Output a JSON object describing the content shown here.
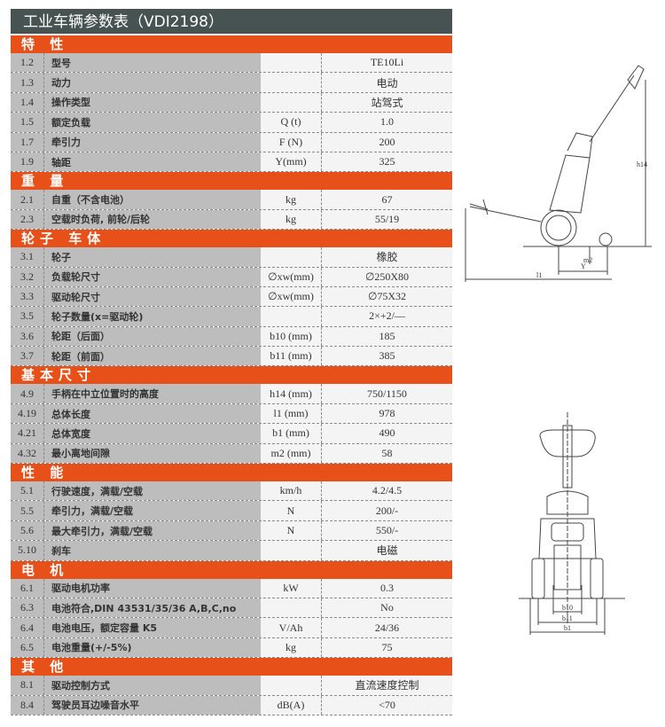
{
  "title": "工业车辆参数表（VDI2198）",
  "sections": [
    {
      "name": "特 性",
      "rows": [
        {
          "num": "1.2",
          "label": "型号",
          "unit": "",
          "value": "TE10Li"
        },
        {
          "num": "1.3",
          "label": "动力",
          "unit": "",
          "value": "电动"
        },
        {
          "num": "1.4",
          "label": "操作类型",
          "unit": "",
          "value": "站驾式"
        },
        {
          "num": "1.5",
          "label": "额定负载",
          "unit": "Q (t)",
          "value": "1.0"
        },
        {
          "num": "1.7",
          "label": "牵引力",
          "unit": "F (N)",
          "value": "200"
        },
        {
          "num": "1.9",
          "label": "轴距",
          "unit": "Y(mm)",
          "value": "325"
        }
      ]
    },
    {
      "name": "重 量",
      "rows": [
        {
          "num": "2.1",
          "label": "自重（不含电池）",
          "unit": "kg",
          "value": "67"
        },
        {
          "num": "2.3",
          "label": "空载时负荷, 前轮/后轮",
          "unit": "kg",
          "value": "55/19"
        }
      ]
    },
    {
      "name": "轮子  车体",
      "rows": [
        {
          "num": "3.1",
          "label": "轮子",
          "unit": "",
          "value": "橡胶"
        },
        {
          "num": "3.2",
          "label": "负载轮尺寸",
          "unit": "∅xw(mm)",
          "value": "∅250X80"
        },
        {
          "num": "3.3",
          "label": "驱动轮尺寸",
          "unit": "∅xw(mm)",
          "value": "∅75X32"
        },
        {
          "num": "3.5",
          "label": "轮子数量(x=驱动轮)",
          "unit": "",
          "value": "2×+2/—"
        },
        {
          "num": "3.6",
          "label": "轮距（后面）",
          "unit": "b10 (mm)",
          "value": "185"
        },
        {
          "num": "3.7",
          "label": "轮距（前面）",
          "unit": "b11 (mm)",
          "value": "385"
        }
      ]
    },
    {
      "name": "基本尺寸",
      "rows": [
        {
          "num": "4.9",
          "label": "手柄在中立位置时的高度",
          "unit": "h14 (mm)",
          "value": "750/1150"
        },
        {
          "num": "4.19",
          "label": "总体长度",
          "unit": "l1 (mm)",
          "value": "978"
        },
        {
          "num": "4.21",
          "label": "总体宽度",
          "unit": "b1 (mm)",
          "value": "490"
        },
        {
          "num": "4.32",
          "label": "最小离地间隙",
          "unit": "m2 (mm)",
          "value": "58"
        }
      ]
    },
    {
      "name": "性 能",
      "rows": [
        {
          "num": "5.1",
          "label": "行驶速度，满载/空载",
          "unit": "km/h",
          "value": "4.2/4.5"
        },
        {
          "num": "5.5",
          "label": "牵引力，满载/空载",
          "unit": "N",
          "value": "200/-"
        },
        {
          "num": "5.6",
          "label": "最大牵引力，满载/空载",
          "unit": "N",
          "value": "550/-"
        },
        {
          "num": "5.10",
          "label": "刹车",
          "unit": "",
          "value": "电磁"
        }
      ]
    },
    {
      "name": "电 机",
      "rows": [
        {
          "num": "6.1",
          "label": "驱动电机功率",
          "unit": "kW",
          "value": "0.3"
        },
        {
          "num": "6.3",
          "label": "电池符合,DIN 43531/35/36 A,B,C,no",
          "unit": "",
          "value": "No"
        },
        {
          "num": "6.4",
          "label": "电池电压，额定容量 K5",
          "unit": "V/Ah",
          "value": "24/36"
        },
        {
          "num": "6.5",
          "label": "电池重量(+/-5%)",
          "unit": "kg",
          "value": "75"
        }
      ]
    },
    {
      "name": "其 他",
      "rows": [
        {
          "num": "8.1",
          "label": "驱动控制方式",
          "unit": "",
          "value": "直流速度控制"
        },
        {
          "num": "8.4",
          "label": "驾驶员耳边噪音水平",
          "unit": "dB(A)",
          "value": "<70"
        }
      ]
    }
  ],
  "side_drawing": {
    "labels": {
      "h14": "h14",
      "l1": "l1",
      "y": "Y",
      "m2": "m2"
    }
  },
  "front_drawing": {
    "labels": {
      "b10": "b10",
      "b11": "b11",
      "b1": "b1"
    }
  },
  "colors": {
    "title_bg": "#475352",
    "section_bg": "#e8501a",
    "label_bg": "#bdbdbd",
    "value_bg": "#f4f4f4"
  }
}
